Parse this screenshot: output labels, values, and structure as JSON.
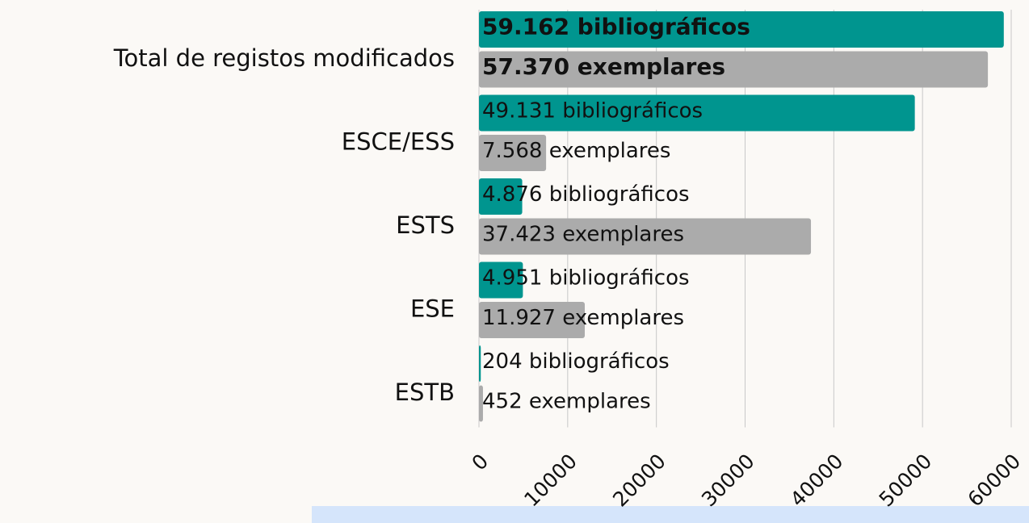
{
  "chart_data": {
    "type": "bar",
    "orientation": "horizontal",
    "categories": [
      "Total de registos modificados",
      "ESCE/ESS",
      "ESTS",
      "ESE",
      "ESTB"
    ],
    "series": [
      {
        "color": "#00958f",
        "values": [
          59162,
          49131,
          4876,
          4951,
          204
        ],
        "value_labels": [
          "59.162 bibliográficos",
          "49.131 bibliográficos",
          "4.876 bibliográficos",
          "4.951 bibliográficos",
          "204 bibliográficos"
        ]
      },
      {
        "color": "#ababab",
        "values": [
          57370,
          7568,
          37423,
          11927,
          452
        ],
        "value_labels": [
          "57.370 exemplares",
          "7.568 exemplares",
          "37.423 exemplares",
          "11.927 exemplares",
          "452 exemplares"
        ]
      }
    ],
    "xlim": [
      0,
      60000
    ],
    "xticks": [
      0,
      10000,
      20000,
      30000,
      40000,
      50000,
      60000
    ],
    "grid": true
  }
}
